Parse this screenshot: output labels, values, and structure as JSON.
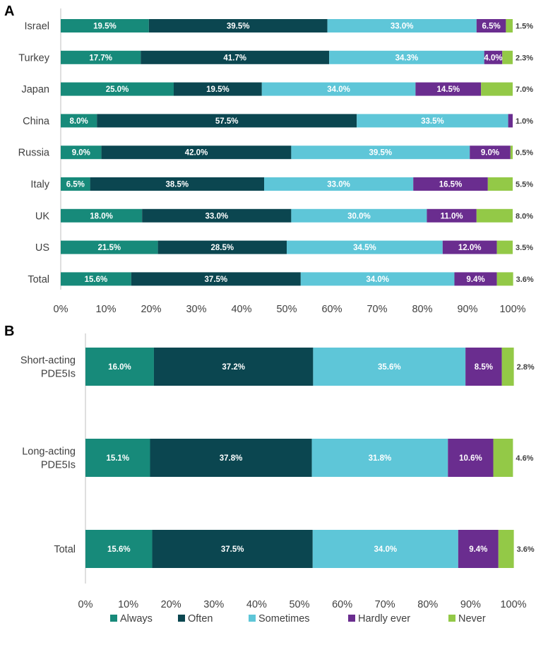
{
  "series_colors": {
    "Always": "#178a7a",
    "Often": "#0b4650",
    "Sometimes": "#5ec6d8",
    "Hardly ever": "#6a2d8f",
    "Never": "#93c947"
  },
  "chart_data": [
    {
      "panel": "A",
      "type": "bar",
      "orientation": "horizontal",
      "stacked": true,
      "xlim": [
        0,
        100
      ],
      "xticks": [
        "0%",
        "10%",
        "20%",
        "30%",
        "40%",
        "50%",
        "60%",
        "70%",
        "80%",
        "90%",
        "100%"
      ],
      "categories": [
        {
          "label": "Israel",
          "values": [
            19.5,
            39.5,
            33.0,
            6.5,
            1.5
          ],
          "labels": [
            "19.5%",
            "39.5%",
            "33.0%",
            "6.5%",
            "1.5%"
          ]
        },
        {
          "label": "Turkey",
          "values": [
            17.7,
            41.7,
            34.3,
            4.0,
            2.3
          ],
          "labels": [
            "17.7%",
            "41.7%",
            "34.3%",
            "4.0%",
            "2.3%"
          ]
        },
        {
          "label": "Japan",
          "values": [
            25.0,
            19.5,
            34.0,
            14.5,
            7.0
          ],
          "labels": [
            "25.0%",
            "19.5%",
            "34.0%",
            "14.5%",
            "7.0%"
          ]
        },
        {
          "label": "China",
          "values": [
            8.0,
            57.5,
            33.5,
            1.0,
            0.0
          ],
          "labels": [
            "8.0%",
            "57.5%",
            "33.5%",
            "1.0%",
            ""
          ]
        },
        {
          "label": "Russia",
          "values": [
            9.0,
            42.0,
            39.5,
            9.0,
            0.5
          ],
          "labels": [
            "9.0%",
            "42.0%",
            "39.5%",
            "9.0%",
            "0.5%"
          ]
        },
        {
          "label": "Italy",
          "values": [
            6.5,
            38.5,
            33.0,
            16.5,
            5.5
          ],
          "labels": [
            "6.5%",
            "38.5%",
            "33.0%",
            "16.5%",
            "5.5%"
          ]
        },
        {
          "label": "UK",
          "values": [
            18.0,
            33.0,
            30.0,
            11.0,
            8.0
          ],
          "labels": [
            "18.0%",
            "33.0%",
            "30.0%",
            "11.0%",
            "8.0%"
          ]
        },
        {
          "label": "US",
          "values": [
            21.5,
            28.5,
            34.5,
            12.0,
            3.5
          ],
          "labels": [
            "21.5%",
            "28.5%",
            "34.5%",
            "12.0%",
            "3.5%"
          ]
        },
        {
          "label": "Total",
          "values": [
            15.6,
            37.5,
            34.0,
            9.4,
            3.6
          ],
          "labels": [
            "15.6%",
            "37.5%",
            "34.0%",
            "9.4%",
            "3.6%"
          ]
        }
      ]
    },
    {
      "panel": "B",
      "type": "bar",
      "orientation": "horizontal",
      "stacked": true,
      "xlim": [
        0,
        100
      ],
      "xticks": [
        "0%",
        "10%",
        "20%",
        "30%",
        "40%",
        "50%",
        "60%",
        "70%",
        "80%",
        "90%",
        "100%"
      ],
      "categories": [
        {
          "label": [
            "Short-acting",
            "PDE5Is"
          ],
          "values": [
            16.0,
            37.2,
            35.6,
            8.5,
            2.8
          ],
          "labels": [
            "16.0%",
            "37.2%",
            "35.6%",
            "8.5%",
            "2.8%"
          ]
        },
        {
          "label": [
            "Long-acting",
            "PDE5Is"
          ],
          "values": [
            15.1,
            37.8,
            31.8,
            10.6,
            4.6
          ],
          "labels": [
            "15.1%",
            "37.8%",
            "31.8%",
            "10.6%",
            "4.6%"
          ]
        },
        {
          "label": [
            "Total"
          ],
          "values": [
            15.6,
            37.5,
            34.0,
            9.4,
            3.6
          ],
          "labels": [
            "15.6%",
            "37.5%",
            "34.0%",
            "9.4%",
            "3.6%"
          ]
        }
      ]
    }
  ],
  "legend": [
    "Always",
    "Often",
    "Sometimes",
    "Hardly ever",
    "Never"
  ]
}
